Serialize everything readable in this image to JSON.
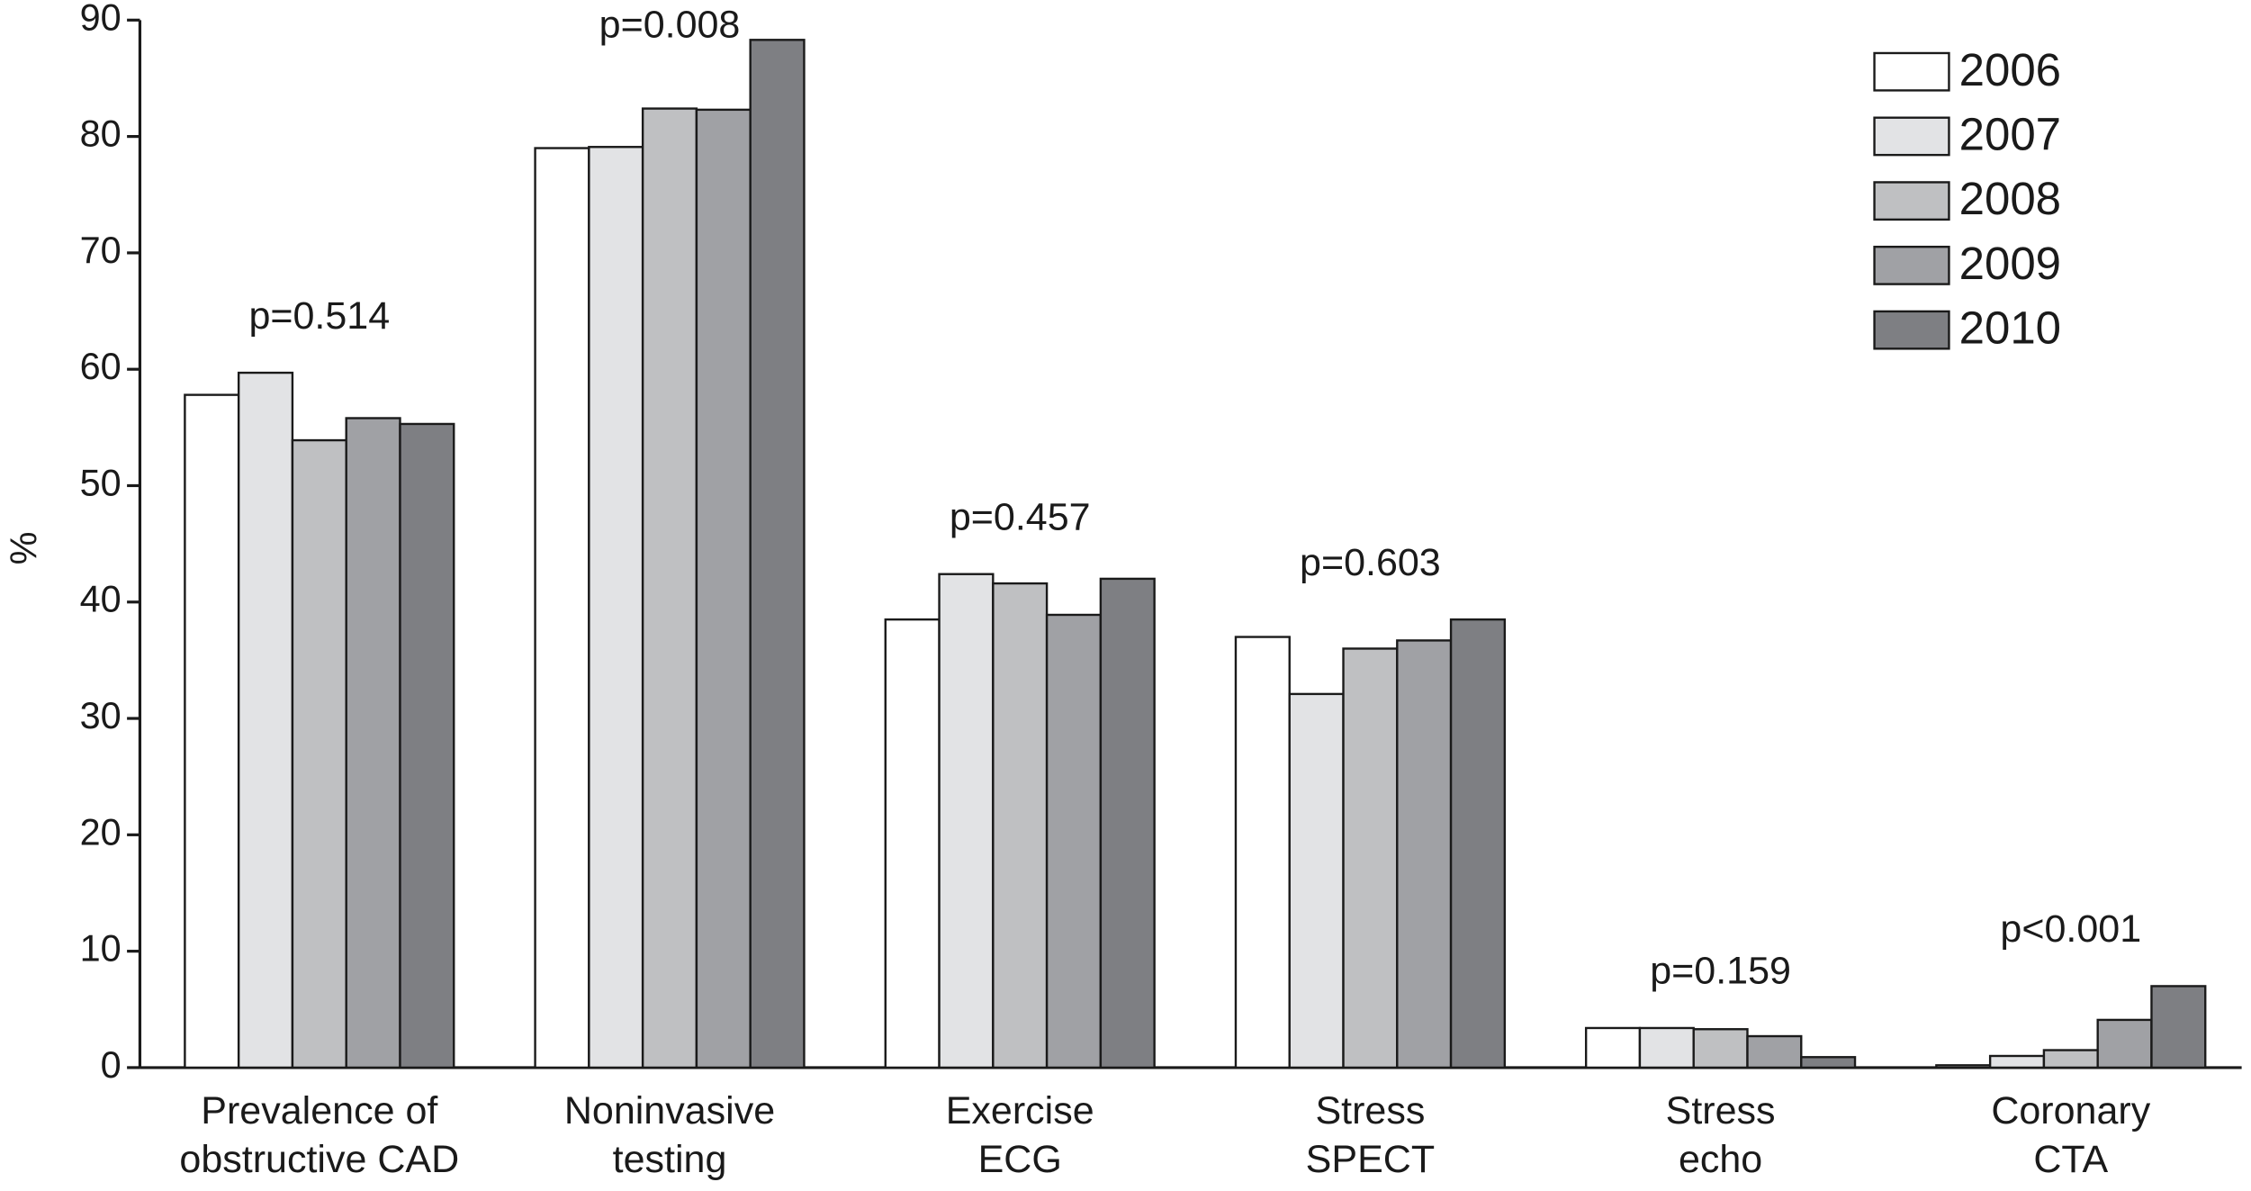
{
  "chart_data": {
    "type": "bar",
    "y_label": "%",
    "categories": [
      "Prevalence of\nobstructive CAD",
      "Noninvasive\ntesting",
      "Exercise\nECG",
      "Stress\nSPECT",
      "Stress\necho",
      "Coronary\nCTA"
    ],
    "annotations": [
      "p=0.514",
      "p=0.008",
      "p=0.457",
      "p=0.603",
      "p=0.159",
      "p<0.001"
    ],
    "series": [
      {
        "name": "2006",
        "color": "#ffffff",
        "values": [
          57.8,
          79.0,
          38.5,
          37.0,
          3.4,
          0.2
        ]
      },
      {
        "name": "2007",
        "color": "#e2e3e5",
        "values": [
          59.7,
          79.1,
          42.4,
          32.1,
          3.4,
          1.0
        ]
      },
      {
        "name": "2008",
        "color": "#bfc0c2",
        "values": [
          53.9,
          82.4,
          41.6,
          36.0,
          3.3,
          1.5
        ]
      },
      {
        "name": "2009",
        "color": "#a0a1a5",
        "values": [
          55.8,
          82.3,
          38.9,
          36.7,
          2.7,
          4.1
        ]
      },
      {
        "name": "2010",
        "color": "#7e7f83",
        "values": [
          55.3,
          88.3,
          42.0,
          38.5,
          0.9,
          7.0
        ]
      }
    ],
    "ylim": [
      0,
      90
    ],
    "yticks": [
      0,
      10,
      20,
      30,
      40,
      50,
      60,
      70,
      80,
      90
    ],
    "legend": "upper-right"
  }
}
